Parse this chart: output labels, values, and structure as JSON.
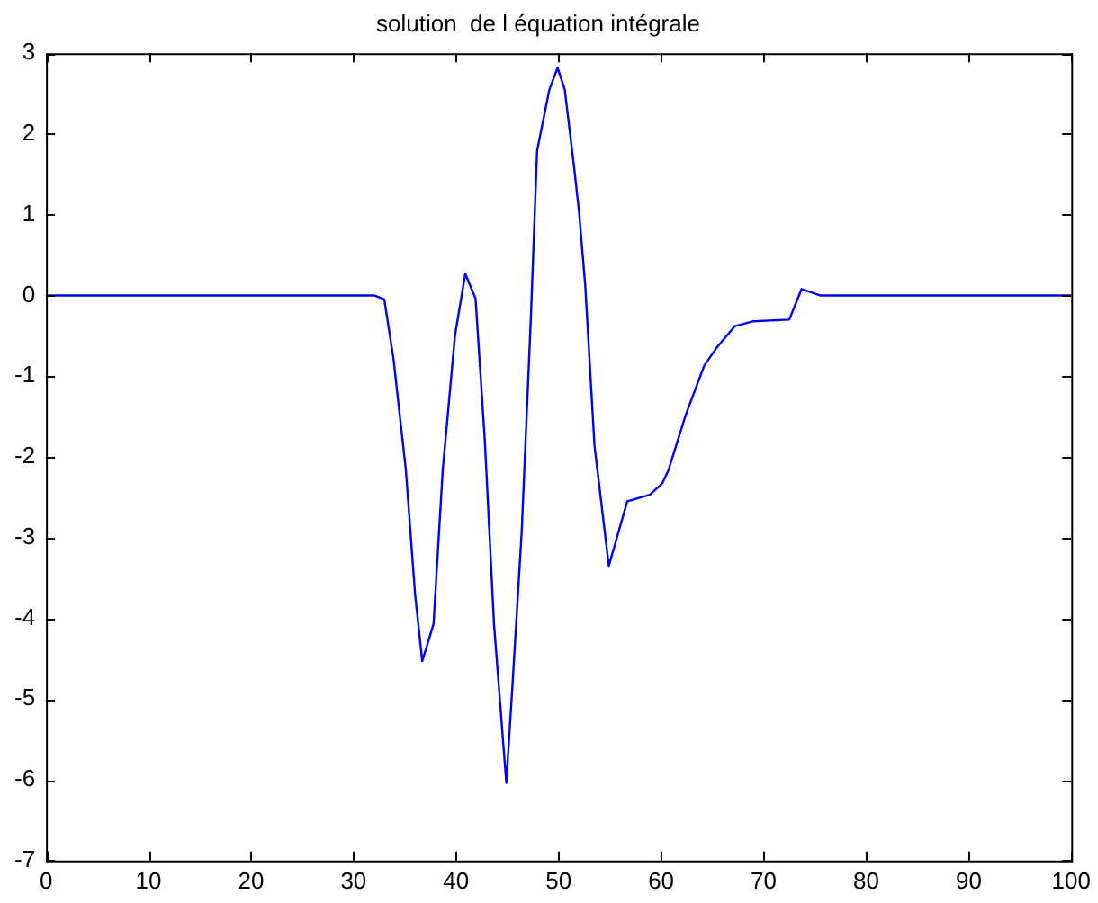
{
  "chart_data": {
    "type": "line",
    "title": "solution  de l équation intégrale",
    "x": [
      0,
      10,
      20,
      30,
      32,
      33,
      33.9,
      35.1,
      36,
      36.7,
      37.8,
      38.7,
      39.9,
      40.9,
      41.9,
      42.8,
      43.7,
      44.9,
      45.5,
      46.4,
      47.3,
      47.9,
      49.1,
      49.9,
      50.6,
      51.5,
      52,
      52.6,
      53.5,
      54.9,
      56.7,
      58.9,
      60.1,
      60.7,
      62.4,
      64.2,
      65.4,
      67.2,
      69,
      72.5,
      73.7,
      75.5,
      80,
      90,
      100
    ],
    "series": [
      {
        "color": "#0000ff",
        "values": [
          0,
          0,
          0,
          0,
          0,
          -0.05,
          -0.79,
          -2.16,
          -3.7,
          -4.53,
          -4.07,
          -2.16,
          -0.49,
          0.27,
          -0.04,
          -1.79,
          -4.07,
          -6.04,
          -4.83,
          -2.93,
          -0.26,
          1.79,
          2.55,
          2.82,
          2.55,
          1.6,
          1.03,
          0.12,
          -1.86,
          -3.35,
          -2.55,
          -2.47,
          -2.33,
          -2.17,
          -1.48,
          -0.87,
          -0.65,
          -0.38,
          -0.32,
          -0.3,
          0.08,
          0,
          0,
          0,
          0
        ]
      }
    ],
    "xlim": [
      0,
      100
    ],
    "xticks": [
      0,
      10,
      20,
      30,
      40,
      50,
      60,
      70,
      80,
      90,
      100
    ],
    "ylim": [
      -7,
      3
    ],
    "yticks": [
      -7,
      -6,
      -5,
      -4,
      -3,
      -2,
      -1,
      0,
      1,
      2,
      3
    ],
    "grid": false,
    "legend": false,
    "marker": "none",
    "line_style": "solid"
  }
}
